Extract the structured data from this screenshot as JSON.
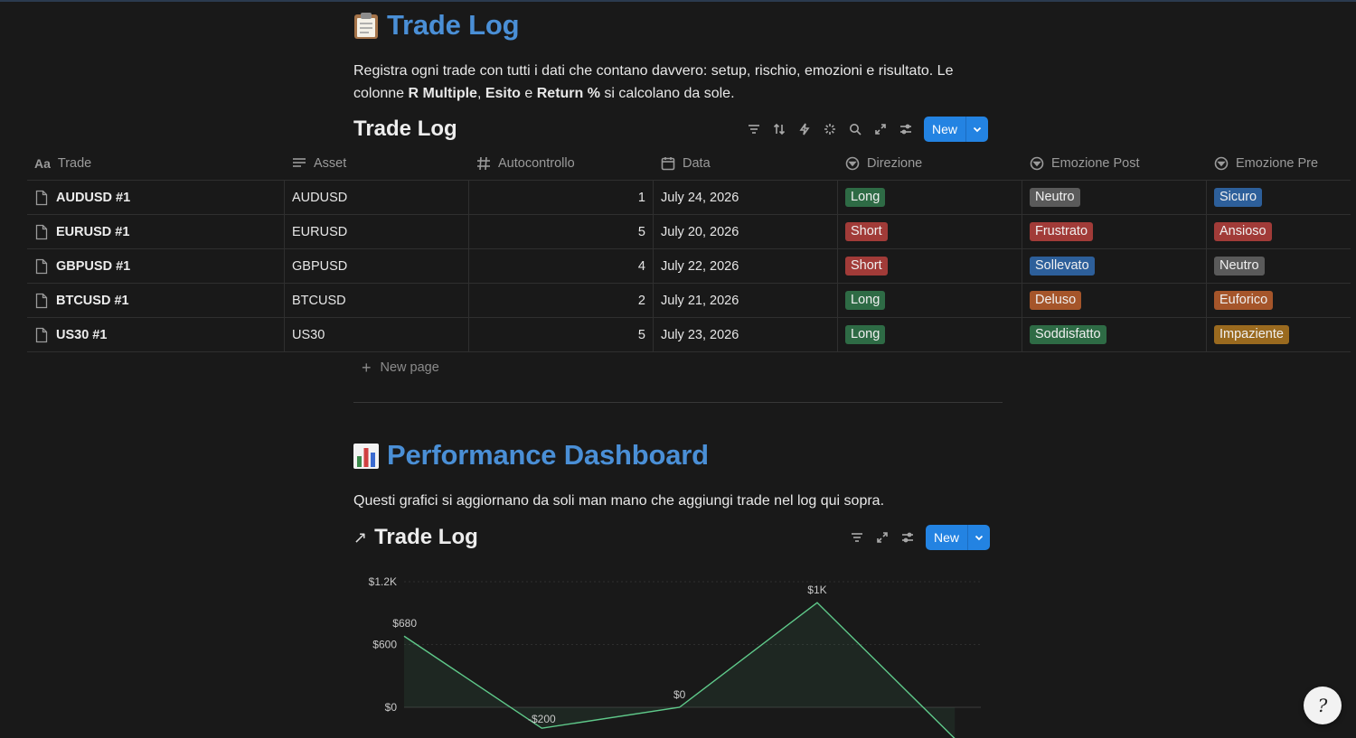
{
  "section1": {
    "title": "Trade Log",
    "description_parts": [
      "Registra ogni trade con tutti i dati che contano davvero: setup, rischio, emozioni e risultato. Le colonne ",
      "R Multiple",
      ", ",
      "Esito",
      " e ",
      "Return %",
      " si calcolano da sole."
    ]
  },
  "db1": {
    "title": "Trade Log",
    "new_label": "New",
    "columns": [
      "Trade",
      "Asset",
      "Autocontrollo",
      "Data",
      "Direzione",
      "Emozione Post",
      "Emozione Pre"
    ],
    "rows": [
      {
        "trade": "AUDUSD #1",
        "asset": "AUDUSD",
        "autocontrollo": "1",
        "data": "July 24, 2026",
        "direzione": "Long",
        "post": "Neutro",
        "pre": "Sicuro"
      },
      {
        "trade": "EURUSD #1",
        "asset": "EURUSD",
        "autocontrollo": "5",
        "data": "July 20, 2026",
        "direzione": "Short",
        "post": "Frustrato",
        "pre": "Ansioso"
      },
      {
        "trade": "GBPUSD #1",
        "asset": "GBPUSD",
        "autocontrollo": "4",
        "data": "July 22, 2026",
        "direzione": "Short",
        "post": "Sollevato",
        "pre": "Neutro"
      },
      {
        "trade": "BTCUSD #1",
        "asset": "BTCUSD",
        "autocontrollo": "2",
        "data": "July 21, 2026",
        "direzione": "Long",
        "post": "Deluso",
        "pre": "Euforico"
      },
      {
        "trade": "US30 #1",
        "asset": "US30",
        "autocontrollo": "5",
        "data": "July 23, 2026",
        "direzione": "Long",
        "post": "Soddisfatto",
        "pre": "Impaziente"
      }
    ],
    "new_page_label": "New page"
  },
  "tag_colors": {
    "Long": "#2e6b45",
    "Short": "#a13b38",
    "Neutro": "#5a5a5a",
    "Frustrato": "#a13b38",
    "Sollevato": "#2d5f9a",
    "Deluso": "#a5552a",
    "Soddisfatto": "#2e6b45",
    "Sicuro": "#2d5f9a",
    "Ansioso": "#a13b38",
    "Euforico": "#a5552a",
    "Impaziente": "#9a6a1f"
  },
  "section2": {
    "title": "Performance Dashboard",
    "description": "Questi grafici si aggiornano da soli man mano che aggiungi trade nel log qui sopra."
  },
  "db2": {
    "title": "Trade Log",
    "new_label": "New"
  },
  "chart_data": {
    "type": "area",
    "title": "",
    "ytick_labels": [
      "$1.2K",
      "$600",
      "$0"
    ],
    "yticks": [
      1200,
      600,
      0
    ],
    "ylim": [
      0,
      1200
    ],
    "point_labels": [
      "$680",
      "-$200",
      "$0",
      "$1K",
      ""
    ],
    "values": [
      680,
      -200,
      0,
      1000,
      -300
    ],
    "line_color": "#5fc98a",
    "grid": true
  }
}
